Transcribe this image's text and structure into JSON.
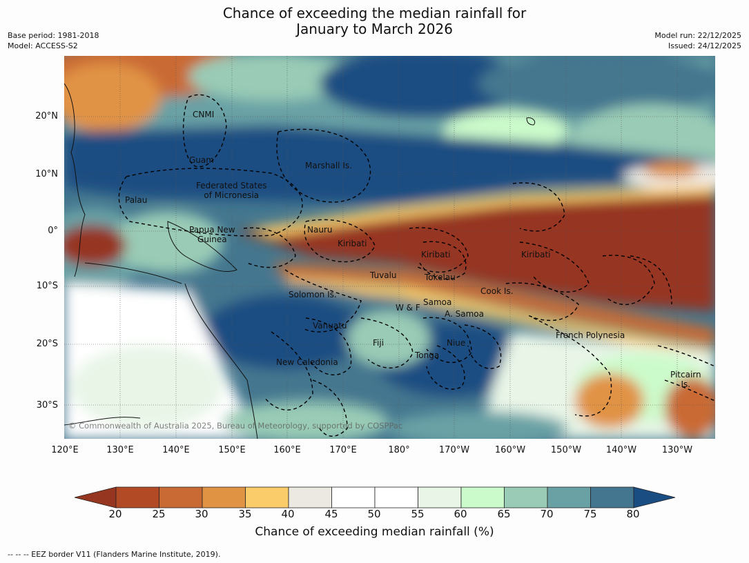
{
  "title_line1": "Chance of exceeding the median rainfall for",
  "title_line2": "January to March 2026",
  "meta_left": [
    "Base period: 1981-2018",
    "Model: ACCESS-S2"
  ],
  "meta_right": [
    "Model run: 22/12/2025",
    "Issued: 24/12/2025"
  ],
  "map": {
    "lat_labels": [
      "20°N",
      "10°N",
      "0°",
      "10°S",
      "20°S",
      "30°S"
    ],
    "lon_labels": [
      "120°E",
      "130°E",
      "140°E",
      "150°E",
      "160°E",
      "170°E",
      "180°",
      "170°W",
      "160°W",
      "150°W",
      "140°W",
      "130°W"
    ],
    "regions": [
      {
        "name": "CNMI"
      },
      {
        "name": "Guam"
      },
      {
        "name": "Marshall Is."
      },
      {
        "name": "Federated States\nof Micronesia"
      },
      {
        "name": "Palau"
      },
      {
        "name": "Papua New\nGuinea"
      },
      {
        "name": "Nauru"
      },
      {
        "name": "Kiribati"
      },
      {
        "name": "Kiribati"
      },
      {
        "name": "Kiribati"
      },
      {
        "name": "Tuvalu"
      },
      {
        "name": "Tokelau"
      },
      {
        "name": "Cook Is."
      },
      {
        "name": "Solomon Is."
      },
      {
        "name": "W & F"
      },
      {
        "name": "Samoa"
      },
      {
        "name": "A. Samoa"
      },
      {
        "name": "Vanuatu"
      },
      {
        "name": "Fiji"
      },
      {
        "name": "Niue"
      },
      {
        "name": "Tonga"
      },
      {
        "name": "New Caledonia"
      },
      {
        "name": "French Polynesia"
      },
      {
        "name": "Pitcairn\nIs."
      }
    ],
    "copyright": "© Commonwealth of Australia 2025, Bureau of Meteorology, supported by COSPPac"
  },
  "colorbar": {
    "ticks": [
      "20",
      "25",
      "30",
      "35",
      "40",
      "45",
      "50",
      "55",
      "60",
      "65",
      "70",
      "75",
      "80"
    ],
    "colors": [
      "#963520",
      "#b24a26",
      "#c96a34",
      "#e19344",
      "#fbcc6a",
      "#ece9e3",
      "#ffffff",
      "#ffffff",
      "#e8f5e7",
      "#ccfbcb",
      "#99cbb6",
      "#69a1a5",
      "#44778f",
      "#1a4e82"
    ],
    "label": "Chance of exceeding median rainfall (%)"
  },
  "footnote": "-- -- -- EEZ border V11 (Flanders Marine Institute, 2019)."
}
